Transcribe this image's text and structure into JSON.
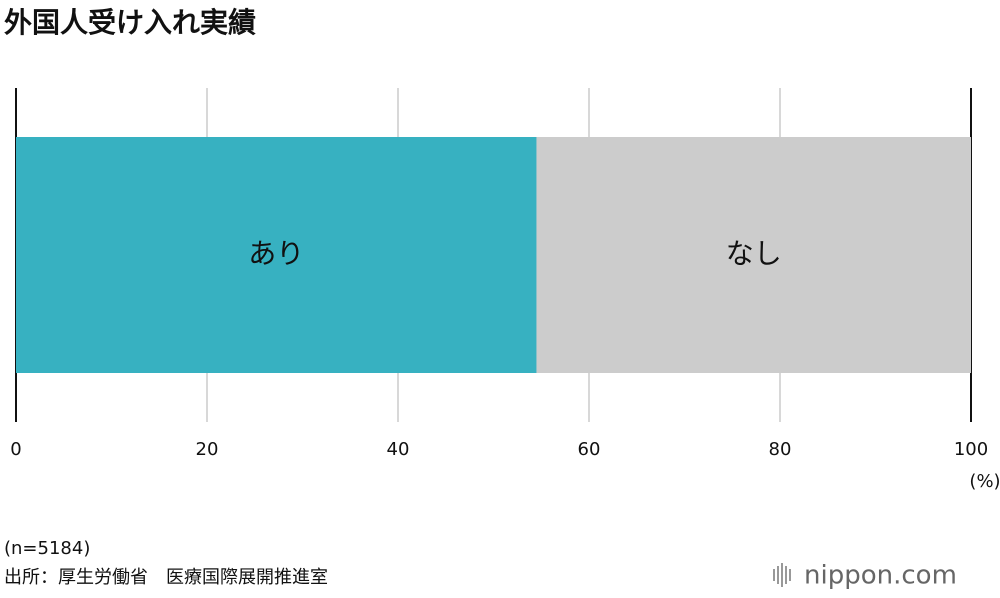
{
  "chart_data": {
    "type": "stacked_bar",
    "title": "外国人受け入れ実績",
    "series": [
      {
        "name": "あり",
        "color": "#37b1c1",
        "values": [
          54.5
        ]
      },
      {
        "name": "なし",
        "color": "#cccccc",
        "values": [
          45.5
        ]
      }
    ],
    "xlim": [
      0,
      100
    ],
    "xticks": [
      0,
      20,
      40,
      60,
      80,
      100
    ],
    "grid": true,
    "x_unit": "(%)",
    "note": "(n=5184)",
    "source": "出所：厚生労働省　医療国際展開推進室",
    "logo": "nippon.com"
  }
}
